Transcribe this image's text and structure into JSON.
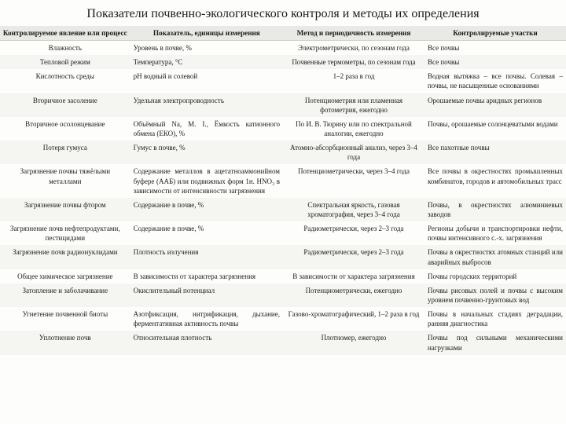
{
  "title": "Показатели почвенно-экологического контроля и методы их определения",
  "headers": [
    "Контролируемое явление или процесс",
    "Показатель, единицы измерения",
    "Метод и периодичность измерения",
    "Контролируемые участки"
  ],
  "rows": [
    [
      "Влажность",
      "Уровень в почве, %",
      "Электрометрически, по сезонам года",
      "Все почвы"
    ],
    [
      "Тепловой режим",
      "Температура, °С",
      "Почвенные термометры, по сезонам года",
      "Все почвы"
    ],
    [
      "Кислотность среды",
      "рН водный и солевой",
      "1–2 раза в год",
      "Водная вытяжка – все почвы. Солевая – почвы, не насыщенные основаниями"
    ],
    [
      "Вторичное засоление",
      "Удельная электропроводность",
      "Потенциометрия или пламенная фотометрия, ежегодно",
      "Орошаемые почвы аридных регионов"
    ],
    [
      "Вторичное осолонцевание",
      "Объёмный Na, М. I., Ёмкость катионного обмена (ЕКО), %",
      "По И. В. Тюрину или по спектральной аналогии, ежегодно",
      "Почвы, орошаемые солонцеватыми водами"
    ],
    [
      "Потеря гумуса",
      "Гумус в почве, %",
      "Атомно-абсорбционный анализ, через 3–4 года",
      "Все пахотные почвы"
    ],
    [
      "Загрязнение почвы тяжёлыми металлами",
      "Содержание металлов в ацетатноаммонийном буфере (ААБ) или подвижных форм 1н. HNO₃ в зависимости от интенсивности загрязнения",
      "Потенциометрически, через 3–4 года",
      "Все почвы в окрестностях промышленных комбинатов, городов и автомобильных трасс"
    ],
    [
      "Загрязнение почвы фтором",
      "Содержание в почве, %",
      "Спектральная яркость, газовая хроматография, через 3–4 года",
      "Почвы, в окрестностях алюминиевых заводов"
    ],
    [
      "Загрязнение почв нефтепродуктами, пестицидами",
      "Содержание в почве, %",
      "Радиометрически, через 2–3 года",
      "Регионы добычи и транспортировки нефти, почвы интенсивного с.-х. загрязнения"
    ],
    [
      "Загрязнение почв радионуклидами",
      "Плотность излучения",
      "Радиометрически, через 2–3 года",
      "Почвы в окрестностях атомных станций или аварийных выбросов"
    ],
    [
      "Общее химическое загрязнение",
      "В зависимости от характера загрязнения",
      "В зависимости от характера загрязнения",
      "Почвы городских территорий"
    ],
    [
      "Затопление и заболачивание",
      "Окислительный потенциал",
      "Потенциометрически, ежегодно",
      "Почвы рисовых полей и почвы с высоким уровнем почвенно-грунтовых вод"
    ],
    [
      "Угнетение почвенной биоты",
      "Азотфиксация, нитрификация, дыхание, ферментативная активность почвы",
      "Газово-хроматографический, 1–2 раза в год",
      "Почвы в начальных стадиях деградации, ранняя диагностика"
    ],
    [
      "Уплотнение почв",
      "Относительная плотность",
      "Плотномер, ежегодно",
      "Почвы под сильными механическими нагрузками"
    ]
  ]
}
